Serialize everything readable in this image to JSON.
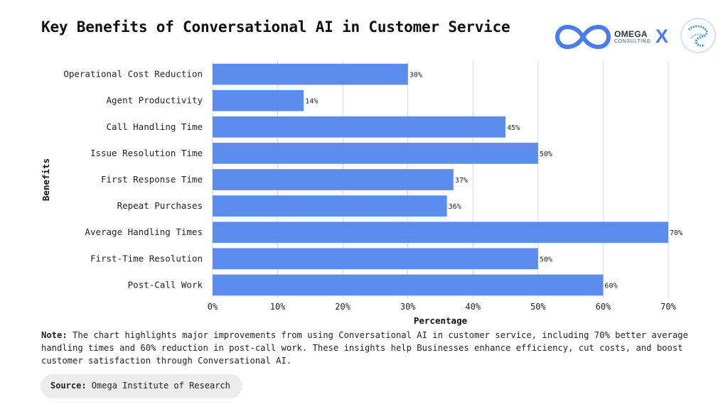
{
  "header": {
    "title": "Key Benefits of Conversational AI in Customer Service",
    "logo_name": "OMEGA",
    "logo_sub": "CONSULTING",
    "logo_separator": "X"
  },
  "chart_data": {
    "type": "bar",
    "orientation": "horizontal",
    "categories": [
      "Operational Cost Reduction",
      "Agent Productivity",
      "Call Handling Time",
      "Issue Resolution Time",
      "First Response Time",
      "Repeat Purchases",
      "Average Handling Times",
      "First-Time Resolution",
      "Post-Call Work"
    ],
    "values": [
      30,
      14,
      45,
      50,
      37,
      36,
      70,
      50,
      60
    ],
    "value_labels": [
      "30%",
      "14%",
      "45%",
      "50%",
      "37%",
      "36%",
      "70%",
      "50%",
      "60%"
    ],
    "xticks": [
      0,
      10,
      20,
      30,
      40,
      50,
      60,
      70
    ],
    "xtick_labels": [
      "0%",
      "10%",
      "20%",
      "30%",
      "40%",
      "50%",
      "60%",
      "70%"
    ],
    "xlim": [
      0,
      70
    ],
    "xlabel": "Percentage",
    "ylabel": "Benefits",
    "bar_color": "#5b8def",
    "grid": true
  },
  "footer": {
    "note_label": "Note:",
    "note_text": " The chart highlights major improvements from using Conversational AI in customer service, including 70% better average handling times and 60% reduction in post-call work. These insights help Businesses enhance efficiency, cut costs, and boost customer satisfaction through Conversational AI.",
    "source_label": "Source:",
    "source_text": " Omega Institute of Research"
  }
}
